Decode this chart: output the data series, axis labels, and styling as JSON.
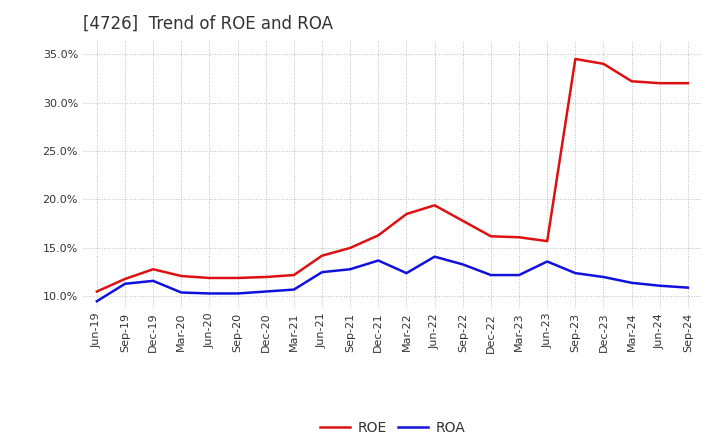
{
  "title": "[4726]  Trend of ROE and ROA",
  "ylim": [
    0.088,
    0.365
  ],
  "yticks": [
    0.1,
    0.15,
    0.2,
    0.25,
    0.3,
    0.35
  ],
  "labels": [
    "Jun-19",
    "Sep-19",
    "Dec-19",
    "Mar-20",
    "Jun-20",
    "Sep-20",
    "Dec-20",
    "Mar-21",
    "Jun-21",
    "Sep-21",
    "Dec-21",
    "Mar-22",
    "Jun-22",
    "Sep-22",
    "Dec-22",
    "Mar-23",
    "Jun-23",
    "Sep-23",
    "Dec-23",
    "Mar-24",
    "Jun-24",
    "Sep-24"
  ],
  "ROE": [
    0.105,
    0.118,
    0.128,
    0.121,
    0.119,
    0.119,
    0.12,
    0.122,
    0.142,
    0.15,
    0.163,
    0.185,
    0.194,
    0.178,
    0.162,
    0.161,
    0.157,
    0.345,
    0.34,
    0.322,
    0.32,
    0.32
  ],
  "ROA": [
    0.095,
    0.113,
    0.116,
    0.104,
    0.103,
    0.103,
    0.105,
    0.107,
    0.125,
    0.128,
    0.137,
    0.124,
    0.141,
    0.133,
    0.122,
    0.122,
    0.136,
    0.124,
    0.12,
    0.114,
    0.111,
    0.109
  ],
  "roe_color": "#dd1111",
  "roa_color": "#1111dd",
  "bg_color": "#ffffff",
  "plot_bg_color": "#ffffff",
  "grid_color": "#bbbbbb",
  "title_color": "#333333",
  "title_fontsize": 12,
  "legend_fontsize": 10,
  "tick_fontsize": 8,
  "line_width": 1.8
}
